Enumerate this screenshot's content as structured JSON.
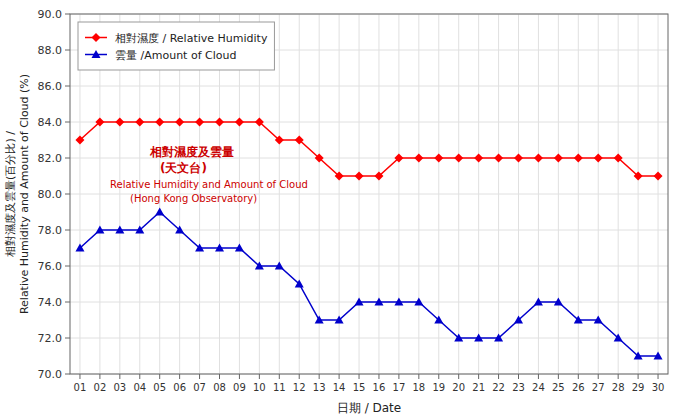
{
  "chart_data": {
    "type": "line",
    "xlabel": "日期 / Date",
    "ylabel": [
      "相對濕度及雲量(百分比) /",
      "Relative Humidity and Amount of Cloud (%)"
    ],
    "x": [
      1,
      2,
      3,
      4,
      5,
      6,
      7,
      8,
      9,
      10,
      11,
      12,
      13,
      14,
      15,
      16,
      17,
      18,
      19,
      20,
      21,
      22,
      23,
      24,
      25,
      26,
      27,
      28,
      29,
      30
    ],
    "xlim": [
      0.5,
      30.5
    ],
    "xticks": [
      {
        "value": 1,
        "label": "01"
      },
      {
        "value": 2,
        "label": "02"
      },
      {
        "value": 3,
        "label": "03"
      },
      {
        "value": 4,
        "label": "04"
      },
      {
        "value": 5,
        "label": "05"
      },
      {
        "value": 6,
        "label": "06"
      },
      {
        "value": 7,
        "label": "07"
      },
      {
        "value": 8,
        "label": "08"
      },
      {
        "value": 9,
        "label": "09"
      },
      {
        "value": 10,
        "label": "10"
      },
      {
        "value": 11,
        "label": "11"
      },
      {
        "value": 12,
        "label": "12"
      },
      {
        "value": 13,
        "label": "13"
      },
      {
        "value": 14,
        "label": "14"
      },
      {
        "value": 15,
        "label": "15"
      },
      {
        "value": 16,
        "label": "16"
      },
      {
        "value": 17,
        "label": "17"
      },
      {
        "value": 18,
        "label": "18"
      },
      {
        "value": 19,
        "label": "19"
      },
      {
        "value": 20,
        "label": "20"
      },
      {
        "value": 21,
        "label": "21"
      },
      {
        "value": 22,
        "label": "22"
      },
      {
        "value": 23,
        "label": "23"
      },
      {
        "value": 24,
        "label": "24"
      },
      {
        "value": 25,
        "label": "25"
      },
      {
        "value": 26,
        "label": "26"
      },
      {
        "value": 27,
        "label": "27"
      },
      {
        "value": 28,
        "label": "28"
      },
      {
        "value": 29,
        "label": "29"
      },
      {
        "value": 30,
        "label": "30"
      }
    ],
    "ylim": [
      70.0,
      90.0
    ],
    "yticks": [
      {
        "value": 70.0,
        "label": "70.0"
      },
      {
        "value": 72.0,
        "label": "72.0"
      },
      {
        "value": 74.0,
        "label": "74.0"
      },
      {
        "value": 76.0,
        "label": "76.0"
      },
      {
        "value": 78.0,
        "label": "78.0"
      },
      {
        "value": 80.0,
        "label": "80.0"
      },
      {
        "value": 82.0,
        "label": "82.0"
      },
      {
        "value": 84.0,
        "label": "84.0"
      },
      {
        "value": 86.0,
        "label": "86.0"
      },
      {
        "value": 88.0,
        "label": "88.0"
      },
      {
        "value": 90.0,
        "label": "90.0"
      }
    ],
    "grid": true,
    "legend": "upper left",
    "annotations": [
      "相對濕度及雲量",
      "(天文台)",
      "Relative Humidity and Amount of Cloud",
      "(Hong Kong Observatory)"
    ],
    "series": [
      {
        "name": "相對濕度 / Relative Humidity",
        "color": "#FF0000",
        "marker": "diamond",
        "line_style": "solid",
        "values": [
          83,
          84,
          84,
          84,
          84,
          84,
          84,
          84,
          84,
          84,
          83,
          83,
          82,
          81,
          81,
          81,
          82,
          82,
          82,
          82,
          82,
          82,
          82,
          82,
          82,
          82,
          82,
          82,
          81,
          81
        ]
      },
      {
        "name": "雲量 /Amount of Cloud",
        "color": "#0000CC",
        "marker": "triangle",
        "line_style": "solid",
        "values": [
          77,
          78,
          78,
          78,
          79,
          78,
          77,
          77,
          77,
          76,
          76,
          75,
          73,
          73,
          74,
          74,
          74,
          74,
          73,
          72,
          72,
          72,
          73,
          74,
          74,
          73,
          73,
          72,
          71,
          71
        ]
      }
    ]
  }
}
